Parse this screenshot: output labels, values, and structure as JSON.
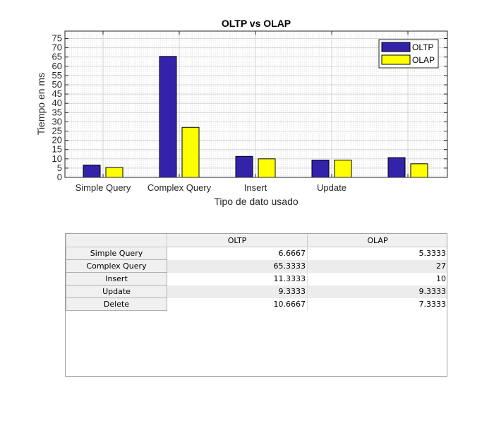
{
  "chart_data": {
    "type": "bar",
    "title": "OLTP vs OLAP",
    "xlabel": "Tipo de dato usado",
    "ylabel": "Tiempo en ms",
    "categories": [
      "Simple Query",
      "Complex Query",
      "Insert",
      "Update",
      ""
    ],
    "series": [
      {
        "name": "OLTP",
        "values": [
          6.6667,
          65.3333,
          11.3333,
          9.3333,
          10.6667
        ],
        "color": "#3322aa"
      },
      {
        "name": "OLAP",
        "values": [
          5.3333,
          27,
          10,
          9.3333,
          7.3333
        ],
        "color": "#ffff00"
      }
    ],
    "ylim": [
      0,
      79
    ],
    "yticks": [
      0,
      5,
      10,
      15,
      20,
      25,
      30,
      35,
      40,
      45,
      50,
      55,
      60,
      65,
      70,
      75
    ],
    "grid": true,
    "legend": "top-right"
  },
  "table": {
    "columns": [
      "OLTP",
      "OLAP"
    ],
    "rows": [
      {
        "label": "Simple Query",
        "values": [
          "6.6667",
          "5.3333"
        ]
      },
      {
        "label": "Complex Query",
        "values": [
          "65.3333",
          "27"
        ]
      },
      {
        "label": "Insert",
        "values": [
          "11.3333",
          "10"
        ]
      },
      {
        "label": "Update",
        "values": [
          "9.3333",
          "9.3333"
        ]
      },
      {
        "label": "Delete",
        "values": [
          "10.6667",
          "7.3333"
        ]
      }
    ]
  }
}
